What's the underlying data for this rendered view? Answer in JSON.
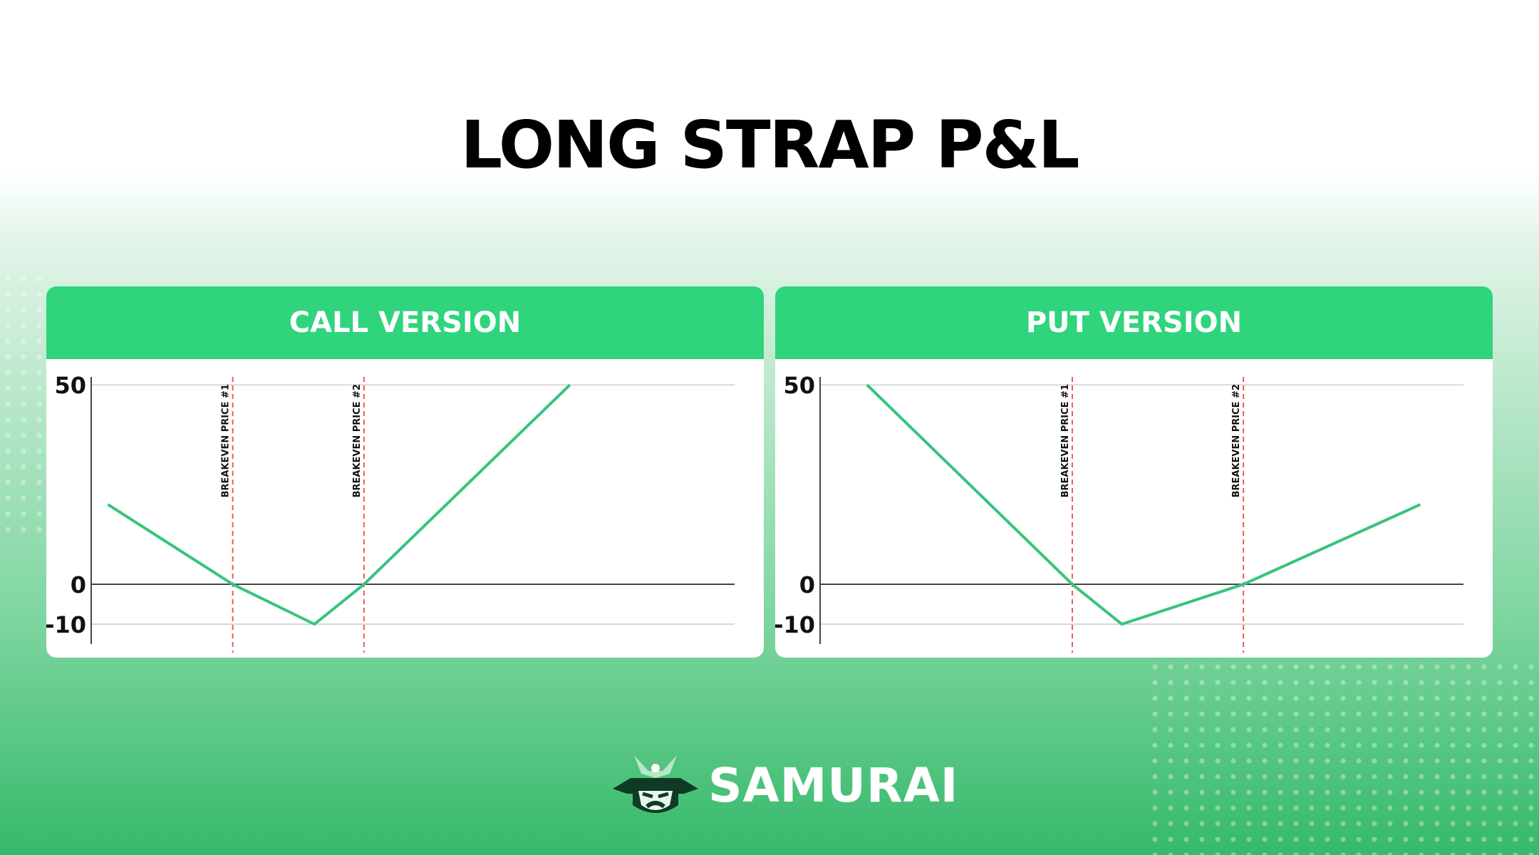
{
  "title": "LONG STRAP P&L",
  "brand": "SAMURAI",
  "chart_data": [
    {
      "type": "line",
      "title": "CALL VERSION",
      "xlim": [
        0,
        100
      ],
      "ylim": [
        -15,
        52
      ],
      "yticks": [
        -10,
        0,
        50
      ],
      "grid": true,
      "series": [
        {
          "color": "#36c47c",
          "x": [
            2.6,
            22,
            34.7,
            42.4,
            74.4
          ],
          "values": [
            20,
            0,
            -10,
            0,
            50
          ]
        }
      ],
      "annotations": [
        {
          "x": 22,
          "label": "BREAKEVEN PRICE #1",
          "color": "#f05a5a"
        },
        {
          "x": 42.4,
          "label": "BREAKEVEN PRICE #2",
          "color": "#f05a5a"
        }
      ]
    },
    {
      "type": "line",
      "title": "PUT VERSION",
      "xlim": [
        0,
        100
      ],
      "ylim": [
        -15,
        52
      ],
      "yticks": [
        -10,
        0,
        50
      ],
      "grid": true,
      "series": [
        {
          "color": "#36c47c",
          "x": [
            7.3,
            39.2,
            46.9,
            65.8,
            93.3
          ],
          "values": [
            50,
            0,
            -10,
            0,
            20
          ]
        }
      ],
      "annotations": [
        {
          "x": 39.2,
          "label": "BREAKEVEN PRICE #1",
          "color": "#f05a5a"
        },
        {
          "x": 65.8,
          "label": "BREAKEVEN PRICE #2",
          "color": "#f05a5a"
        }
      ]
    }
  ]
}
